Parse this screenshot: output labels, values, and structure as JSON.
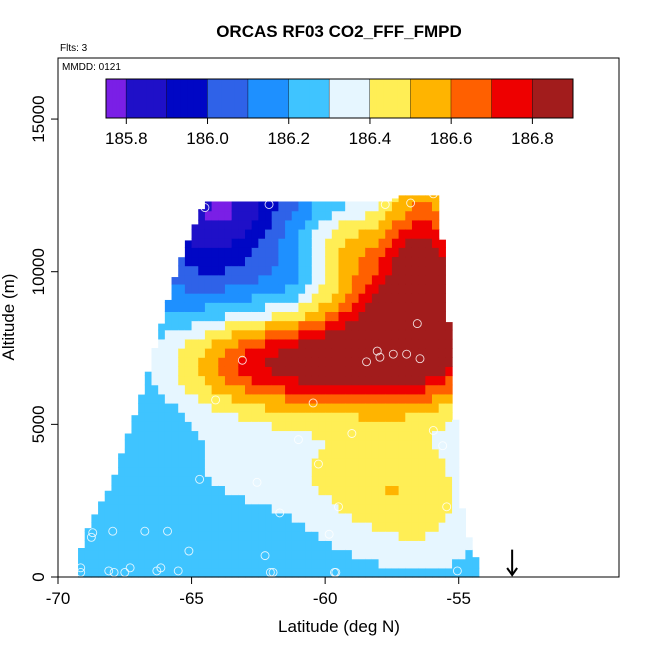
{
  "chart_data": {
    "type": "heatmap",
    "title": "ORCAS RF03 CO2_FFF_FMPD",
    "annotations": {
      "flights": "Flts: 3",
      "date": "MMDD: 0121"
    },
    "xlabel": "Latitude (deg N)",
    "ylabel": "Altitude (m)",
    "xlim": [
      -70,
      -49
    ],
    "ylim": [
      0,
      17000
    ],
    "x_ticks": [
      -70,
      -65,
      -60,
      -55
    ],
    "x_tick_labels": [
      "-70",
      "-65",
      "-60",
      "-55"
    ],
    "y_ticks": [
      0,
      5000,
      10000,
      15000
    ],
    "y_tick_labels": [
      "0",
      "5000",
      "10000",
      "15000"
    ],
    "marker": {
      "label": "arrow",
      "latitude": -53,
      "altitude": 700
    },
    "colorbar": {
      "min": 185.75,
      "max": 186.9,
      "ticks": [
        185.8,
        186.0,
        186.2,
        186.4,
        186.6,
        186.8
      ],
      "tick_labels": [
        "185.8",
        "186.0",
        "186.2",
        "186.4",
        "186.6",
        "186.8"
      ],
      "bins": [
        {
          "from": 185.75,
          "to": 185.8,
          "color": "#7a1fe6"
        },
        {
          "from": 185.8,
          "to": 185.9,
          "color": "#1f10c8"
        },
        {
          "from": 185.9,
          "to": 186.0,
          "color": "#0007c5"
        },
        {
          "from": 186.0,
          "to": 186.1,
          "color": "#2f62e8"
        },
        {
          "from": 186.1,
          "to": 186.2,
          "color": "#1e90ff"
        },
        {
          "from": 186.2,
          "to": 186.3,
          "color": "#3fc4ff"
        },
        {
          "from": 186.3,
          "to": 186.4,
          "color": "#e6f6ff"
        },
        {
          "from": 186.4,
          "to": 186.5,
          "color": "#ffee55"
        },
        {
          "from": 186.5,
          "to": 186.6,
          "color": "#ffb400"
        },
        {
          "from": 186.6,
          "to": 186.7,
          "color": "#ff6000"
        },
        {
          "from": 186.7,
          "to": 186.8,
          "color": "#ee0000"
        },
        {
          "from": 186.8,
          "to": 186.9,
          "color": "#a21c1c"
        }
      ]
    },
    "field": {
      "lat_step": 0.25,
      "alt_step": 300,
      "domain": [
        {
          "lat": -69.25,
          "alt_max": 500
        },
        {
          "lat": -69.0,
          "alt_max": 1400
        },
        {
          "lat": -68.75,
          "alt_max": 1800
        },
        {
          "lat": -68.5,
          "alt_max": 2300
        },
        {
          "lat": -68.0,
          "alt_max": 3000
        },
        {
          "lat": -67.5,
          "alt_max": 4400
        },
        {
          "lat": -67.0,
          "alt_max": 5600
        },
        {
          "lat": -66.5,
          "alt_max": 7100
        },
        {
          "lat": -66.0,
          "alt_max": 8700
        },
        {
          "lat": -65.5,
          "alt_max": 10200
        },
        {
          "lat": -65.0,
          "alt_max": 11300
        },
        {
          "lat": -64.5,
          "alt_max": 12300
        },
        {
          "lat": -57.5,
          "alt_max": 12300
        },
        {
          "lat": -57.25,
          "alt_max": 12500
        },
        {
          "lat": -55.75,
          "alt_max": 12500
        },
        {
          "lat": -55.5,
          "alt_max": 9600
        },
        {
          "lat": -55.25,
          "alt_max": 7100
        },
        {
          "lat": -55.0,
          "alt_max": 3200
        },
        {
          "lat": -54.75,
          "alt_max": 1300
        },
        {
          "lat": -54.5,
          "alt_max": 1300
        },
        {
          "lat": -54.25,
          "alt_max": 0
        }
      ],
      "background": 186.2,
      "features": [
        {
          "lat": -56.8,
          "alt": 8300,
          "slat": 2.4,
          "salt": 1900,
          "amp": 0.63
        },
        {
          "lat": -56.3,
          "alt": 11000,
          "slat": 1.1,
          "salt": 2000,
          "amp": 0.4
        },
        {
          "lat": -59.5,
          "alt": 7000,
          "slat": 3.0,
          "salt": 1000,
          "amp": 0.38
        },
        {
          "lat": -62.8,
          "alt": 7000,
          "slat": 2.4,
          "salt": 1200,
          "amp": 0.32
        },
        {
          "lat": -61.0,
          "alt": 3600,
          "slat": 4.5,
          "salt": 1300,
          "amp": 0.14
        },
        {
          "lat": -57.2,
          "alt": 2600,
          "slat": 2.2,
          "salt": 1200,
          "amp": 0.2
        },
        {
          "lat": -64.3,
          "alt": 11700,
          "slat": 1.5,
          "salt": 1800,
          "amp": -0.34
        },
        {
          "lat": -62.5,
          "alt": 12200,
          "slat": 1.6,
          "salt": 800,
          "amp": -0.14
        },
        {
          "lat": -61.3,
          "alt": 9700,
          "slat": 1.1,
          "salt": 900,
          "amp": -0.12
        },
        {
          "lat": -59.3,
          "alt": 11000,
          "slat": 1.1,
          "salt": 900,
          "amp": 0.16
        },
        {
          "lat": -66.8,
          "alt": 4800,
          "slat": 1.4,
          "salt": 1500,
          "amp": -0.04
        },
        {
          "lat": -61.0,
          "alt": 500,
          "slat": 7.0,
          "salt": 700,
          "amp": 0.04
        },
        {
          "lat": -56.0,
          "alt": 1200,
          "slat": 1.6,
          "salt": 1000,
          "amp": 0.06
        }
      ]
    },
    "points": [
      [
        -69.15,
        300
      ],
      [
        -69.15,
        150
      ],
      [
        -68.7,
        1450
      ],
      [
        -68.75,
        1300
      ],
      [
        -68.7,
        2250
      ],
      [
        -68.1,
        200
      ],
      [
        -67.9,
        150
      ],
      [
        -67.5,
        150
      ],
      [
        -67.3,
        300
      ],
      [
        -67.95,
        1500
      ],
      [
        -66.75,
        1500
      ],
      [
        -66.15,
        300
      ],
      [
        -66.3,
        200
      ],
      [
        -65.9,
        1500
      ],
      [
        -65.5,
        200
      ],
      [
        -65.1,
        850
      ],
      [
        -64.7,
        3200
      ],
      [
        -64.1,
        5800
      ],
      [
        -63.1,
        7100
      ],
      [
        -62.55,
        3100
      ],
      [
        -62.25,
        700
      ],
      [
        -62.05,
        150
      ],
      [
        -61.95,
        150
      ],
      [
        -61.7,
        2100
      ],
      [
        -61.0,
        4500
      ],
      [
        -60.45,
        5700
      ],
      [
        -60.25,
        3700
      ],
      [
        -59.85,
        1400
      ],
      [
        -59.65,
        150
      ],
      [
        -59.6,
        150
      ],
      [
        -59.5,
        2300
      ],
      [
        -59.0,
        4700
      ],
      [
        -58.45,
        7050
      ],
      [
        -58.05,
        7400
      ],
      [
        -57.95,
        7200
      ],
      [
        -57.45,
        7300
      ],
      [
        -56.95,
        7300
      ],
      [
        -56.55,
        8300
      ],
      [
        -56.45,
        7150
      ],
      [
        -55.95,
        4800
      ],
      [
        -55.6,
        4300
      ],
      [
        -55.45,
        2300
      ],
      [
        -55.05,
        200
      ],
      [
        -64.5,
        12100
      ],
      [
        -62.1,
        12200
      ],
      [
        -57.75,
        12200
      ],
      [
        -56.8,
        12250
      ],
      [
        -55.95,
        12550
      ]
    ]
  }
}
